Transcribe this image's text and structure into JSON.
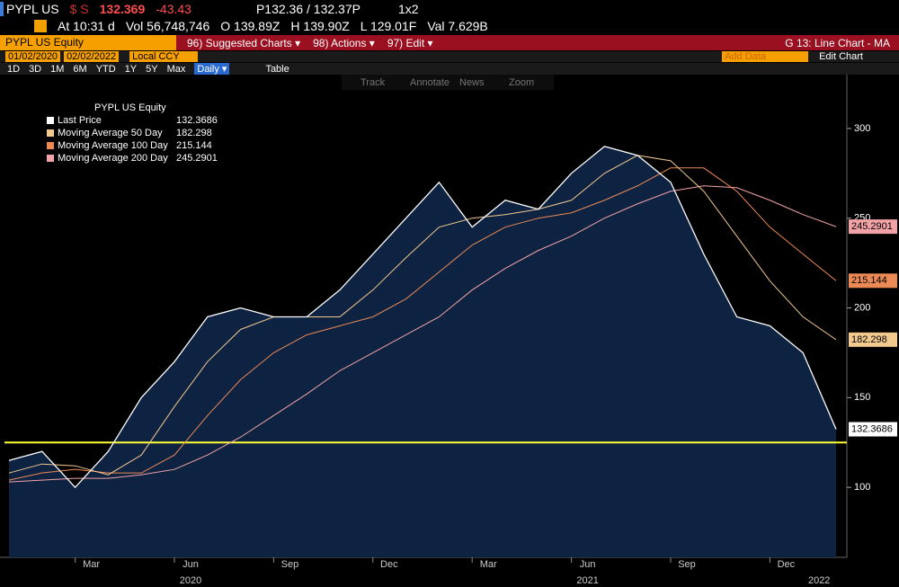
{
  "header": {
    "ticker": "PYPL US",
    "currency": "$ S",
    "last": "132.369",
    "change": "-43.43",
    "bidask": "P132.36 / 132.37P",
    "size": "1x2",
    "time": "At 10:31 d",
    "vol": "Vol 56,748,746",
    "open": "O 139.89Z",
    "high": "H 139.90Z",
    "low": "L 129.01F",
    "val": "Val 7.629B"
  },
  "menubar": {
    "security": "PYPL US Equity",
    "items": [
      "96) Suggested Charts ▾",
      "98) Actions ▾",
      "97) Edit ▾"
    ],
    "right": "G 13: Line Chart - MA"
  },
  "daterow": {
    "start": "01/02/2020",
    "end": "02/02/2022",
    "ccy": "Local CCY",
    "add": "Add Data",
    "edit": "Edit Chart"
  },
  "periods": [
    "1D",
    "3D",
    "1M",
    "6M",
    "YTD",
    "1Y",
    "5Y",
    "Max",
    "Daily ▾"
  ],
  "table": "Table",
  "tools": [
    "Track",
    "Annotate",
    "News",
    "Zoom"
  ],
  "chart_data": {
    "type": "line",
    "legend_title": "PYPL US Equity",
    "x": [
      "2020-01",
      "2020-02",
      "2020-03",
      "2020-04",
      "2020-05",
      "2020-06",
      "2020-07",
      "2020-08",
      "2020-09",
      "2020-10",
      "2020-11",
      "2020-12",
      "2021-01",
      "2021-02",
      "2021-03",
      "2021-04",
      "2021-05",
      "2021-06",
      "2021-07",
      "2021-08",
      "2021-09",
      "2021-10",
      "2021-11",
      "2021-12",
      "2022-01",
      "2022-02"
    ],
    "series": [
      {
        "name": "Last Price",
        "color": "#ffffff",
        "values": [
          115,
          120,
          100,
          120,
          150,
          170,
          195,
          200,
          195,
          195,
          210,
          230,
          250,
          270,
          245,
          260,
          255,
          275,
          290,
          285,
          270,
          230,
          195,
          190,
          175,
          132.3686
        ]
      },
      {
        "name": "Moving Average 50 Day",
        "color": "#f2c98f",
        "values": [
          108,
          113,
          112,
          107,
          118,
          145,
          170,
          188,
          195,
          195,
          195,
          210,
          228,
          245,
          250,
          252,
          255,
          260,
          275,
          285,
          282,
          265,
          240,
          215,
          195,
          182.298
        ]
      },
      {
        "name": "Moving Average 100 Day",
        "color": "#ec8a55",
        "values": [
          104,
          108,
          110,
          108,
          108,
          118,
          140,
          160,
          175,
          185,
          190,
          195,
          205,
          220,
          235,
          245,
          250,
          253,
          260,
          268,
          278,
          278,
          265,
          245,
          230,
          215.144
        ]
      },
      {
        "name": "Moving Average 200 Day",
        "color": "#f2a3a8",
        "values": [
          103,
          104,
          105,
          105,
          107,
          110,
          118,
          128,
          140,
          152,
          165,
          175,
          185,
          195,
          210,
          222,
          232,
          240,
          250,
          258,
          265,
          268,
          267,
          260,
          252,
          245.2901
        ]
      }
    ],
    "ylim": [
      61,
      330
    ],
    "yticks": [
      100,
      150,
      200,
      250,
      300
    ],
    "hline": 125,
    "hline_color": "#ffff33",
    "month_labels": [
      {
        "value": "2020-03",
        "label": "Mar"
      },
      {
        "value": "2020-06",
        "label": "Jun"
      },
      {
        "value": "2020-09",
        "label": "Sep"
      },
      {
        "value": "2020-12",
        "label": "Dec"
      },
      {
        "value": "2021-03",
        "label": "Mar"
      },
      {
        "value": "2021-06",
        "label": "Jun"
      },
      {
        "value": "2021-09",
        "label": "Sep"
      },
      {
        "value": "2021-12",
        "label": "Dec"
      }
    ],
    "year_labels": [
      {
        "value": "2020-06",
        "label": "2020"
      },
      {
        "value": "2021-06",
        "label": "2021"
      },
      {
        "value": "2022-01",
        "label": "2022"
      }
    ]
  }
}
